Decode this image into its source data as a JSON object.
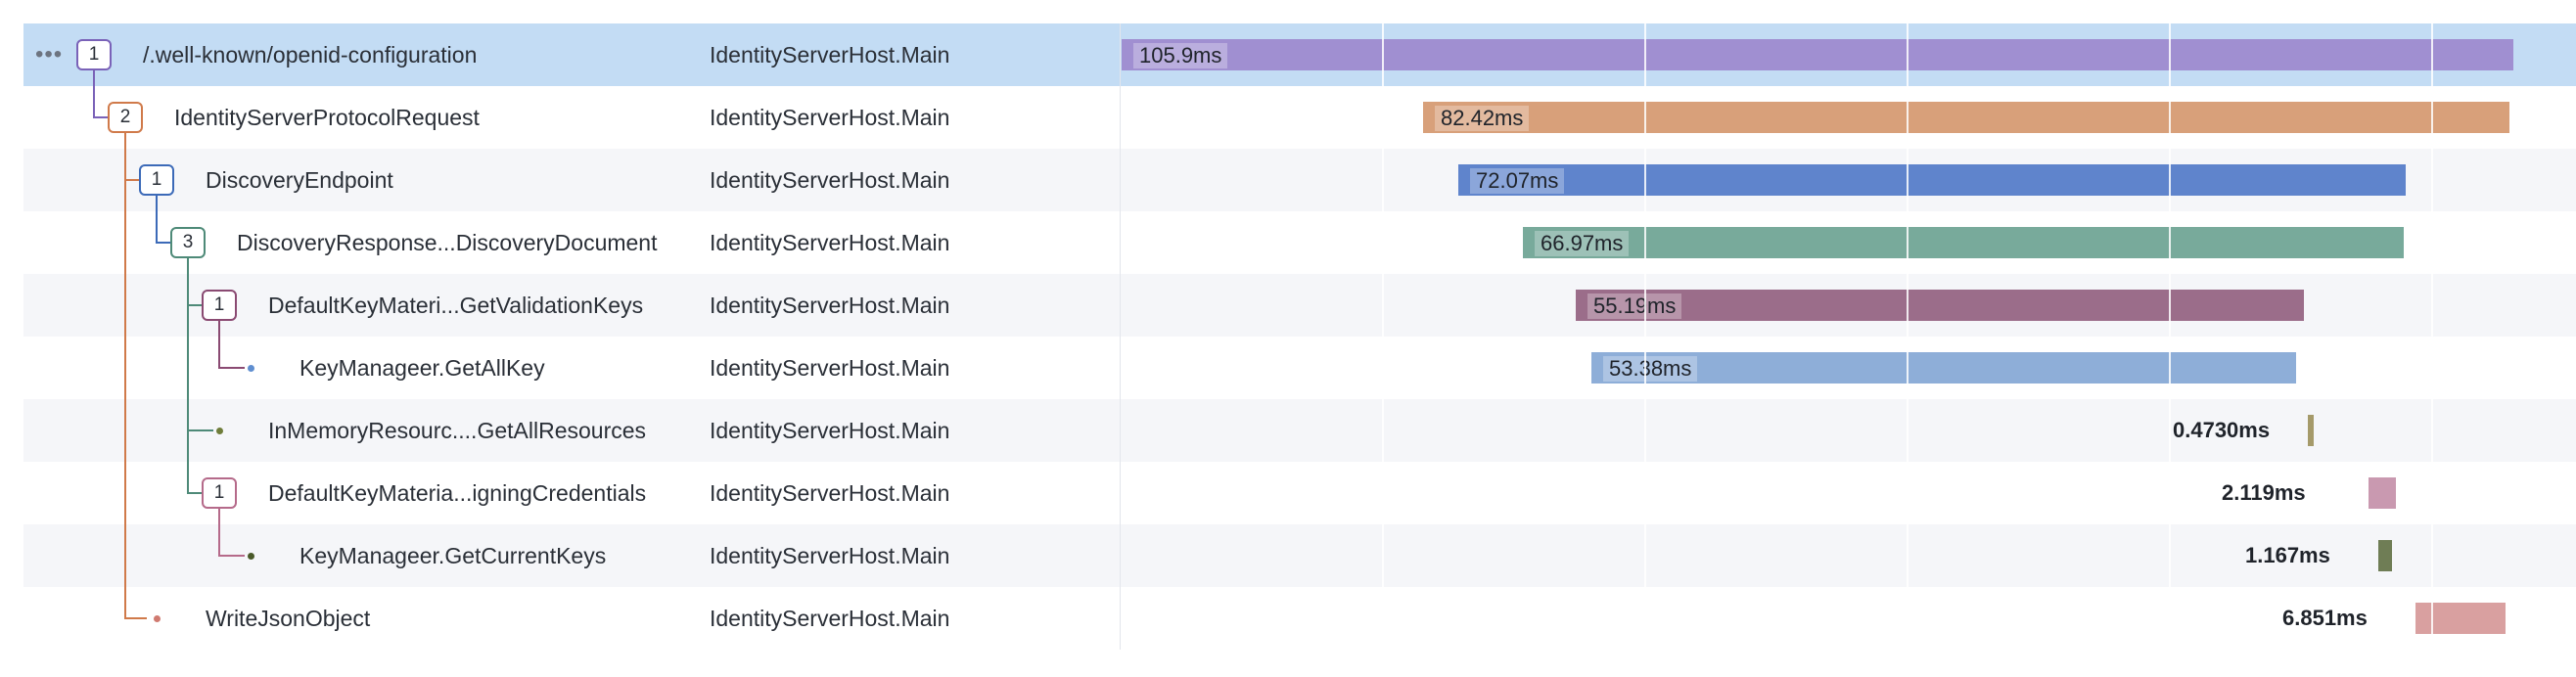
{
  "trace": {
    "more_icon": "ellipsis-icon",
    "spans": [
      {
        "name": "/.well-known/openid-configuration",
        "service": "IdentityServerHost.Main",
        "duration": "105.9ms",
        "children_count": "1",
        "color": "#a08fd1",
        "selected": true
      },
      {
        "name": "IdentityServerProtocolRequest",
        "service": "IdentityServerHost.Main",
        "duration": "82.42ms",
        "children_count": "2",
        "color": "#d8a07a"
      },
      {
        "name": "DiscoveryEndpoint",
        "service": "IdentityServerHost.Main",
        "duration": "72.07ms",
        "children_count": "1",
        "color": "#5f84cc"
      },
      {
        "name": "DiscoveryResponse...DiscoveryDocument",
        "service": "IdentityServerHost.Main",
        "duration": "66.97ms",
        "children_count": "3",
        "color": "#78aa9b"
      },
      {
        "name": "DefaultKeyMateri...GetValidationKeys",
        "service": "IdentityServerHost.Main",
        "duration": "55.19ms",
        "children_count": "1",
        "color": "#9b6d8a"
      },
      {
        "name": "KeyManageer.GetAllKey",
        "service": "IdentityServerHost.Main",
        "duration": "53.38ms",
        "color": "#8eaed8"
      },
      {
        "name": "InMemoryResourc....GetAllResources",
        "service": "IdentityServerHost.Main",
        "duration": "0.4730ms",
        "color": "#a59a6a"
      },
      {
        "name": "DefaultKeyMateria...igningCredentials",
        "service": "IdentityServerHost.Main",
        "duration": "2.119ms",
        "children_count": "1",
        "color": "#c999b0"
      },
      {
        "name": "KeyManageer.GetCurrentKeys",
        "service": "IdentityServerHost.Main",
        "duration": "1.167ms",
        "color": "#6f7d55"
      },
      {
        "name": "WriteJsonObject",
        "service": "IdentityServerHost.Main",
        "duration": "6.851ms",
        "color": "#d9a0a0"
      }
    ]
  },
  "tree_colors": {
    "root": "#7a62b8",
    "protocol": "#d07a4a",
    "discovery": "#3c6ab8",
    "response": "#4e8a78",
    "keys": "#8a4a72",
    "signing": "#b56a8a",
    "leaf_dot_blue": "#5f8ed0",
    "leaf_dot_olive": "#6f7d3a",
    "leaf_dot_dark": "#4a5a2a",
    "leaf_dot_red": "#d07a70"
  }
}
